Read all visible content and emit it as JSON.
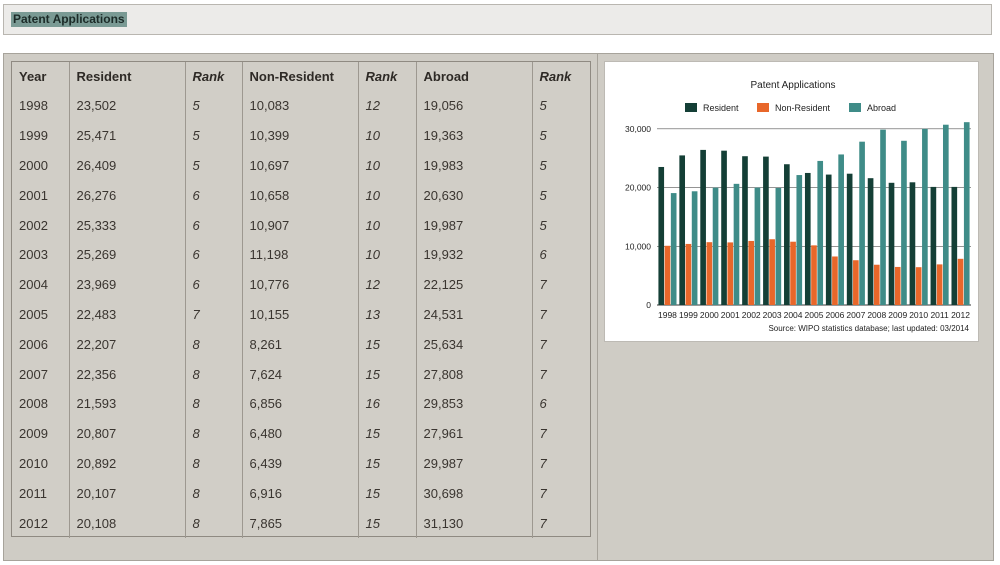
{
  "page": {
    "title": "Patent Applications"
  },
  "table": {
    "headers": [
      "Year",
      "Resident",
      "Rank",
      "Non-Resident",
      "Rank",
      "Abroad",
      "Rank"
    ],
    "rows": [
      [
        "1998",
        "23,502",
        "5",
        "10,083",
        "12",
        "19,056",
        "5"
      ],
      [
        "1999",
        "25,471",
        "5",
        "10,399",
        "10",
        "19,363",
        "5"
      ],
      [
        "2000",
        "26,409",
        "5",
        "10,697",
        "10",
        "19,983",
        "5"
      ],
      [
        "2001",
        "26,276",
        "6",
        "10,658",
        "10",
        "20,630",
        "5"
      ],
      [
        "2002",
        "25,333",
        "6",
        "10,907",
        "10",
        "19,987",
        "5"
      ],
      [
        "2003",
        "25,269",
        "6",
        "11,198",
        "10",
        "19,932",
        "6"
      ],
      [
        "2004",
        "23,969",
        "6",
        "10,776",
        "12",
        "22,125",
        "7"
      ],
      [
        "2005",
        "22,483",
        "7",
        "10,155",
        "13",
        "24,531",
        "7"
      ],
      [
        "2006",
        "22,207",
        "8",
        "8,261",
        "15",
        "25,634",
        "7"
      ],
      [
        "2007",
        "22,356",
        "8",
        "7,624",
        "15",
        "27,808",
        "7"
      ],
      [
        "2008",
        "21,593",
        "8",
        "6,856",
        "16",
        "29,853",
        "6"
      ],
      [
        "2009",
        "20,807",
        "8",
        "6,480",
        "15",
        "27,961",
        "7"
      ],
      [
        "2010",
        "20,892",
        "8",
        "6,439",
        "15",
        "29,987",
        "7"
      ],
      [
        "2011",
        "20,107",
        "8",
        "6,916",
        "15",
        "30,698",
        "7"
      ],
      [
        "2012",
        "20,108",
        "8",
        "7,865",
        "15",
        "31,130",
        "7"
      ]
    ]
  },
  "chart_data": {
    "type": "bar",
    "title": "Patent Applications",
    "source": "Source: WIPO statistics database; last updated: 03/2014",
    "categories": [
      "1998",
      "1999",
      "2000",
      "2001",
      "2002",
      "2003",
      "2004",
      "2005",
      "2006",
      "2007",
      "2008",
      "2009",
      "2010",
      "2011",
      "2012"
    ],
    "series": [
      {
        "name": "Resident",
        "color": "#143f36",
        "values": [
          23502,
          25471,
          26409,
          26276,
          25333,
          25269,
          23969,
          22483,
          22207,
          22356,
          21593,
          20807,
          20892,
          20107,
          20108
        ]
      },
      {
        "name": "Non-Resident",
        "color": "#e8672a",
        "values": [
          10083,
          10399,
          10697,
          10658,
          10907,
          11198,
          10776,
          10155,
          8261,
          7624,
          6856,
          6480,
          6439,
          6916,
          7865
        ]
      },
      {
        "name": "Abroad",
        "color": "#3f8c88",
        "values": [
          19056,
          19363,
          19983,
          20630,
          19987,
          19932,
          22125,
          24531,
          25634,
          27808,
          29853,
          27961,
          29987,
          30698,
          31130
        ]
      }
    ],
    "yticks": [
      0,
      10000,
      20000,
      30000
    ],
    "ytick_labels": [
      "0",
      "10,000",
      "20,000",
      "30,000"
    ],
    "ylim": [
      0,
      31500
    ],
    "grid": true,
    "legend_position": "top"
  }
}
